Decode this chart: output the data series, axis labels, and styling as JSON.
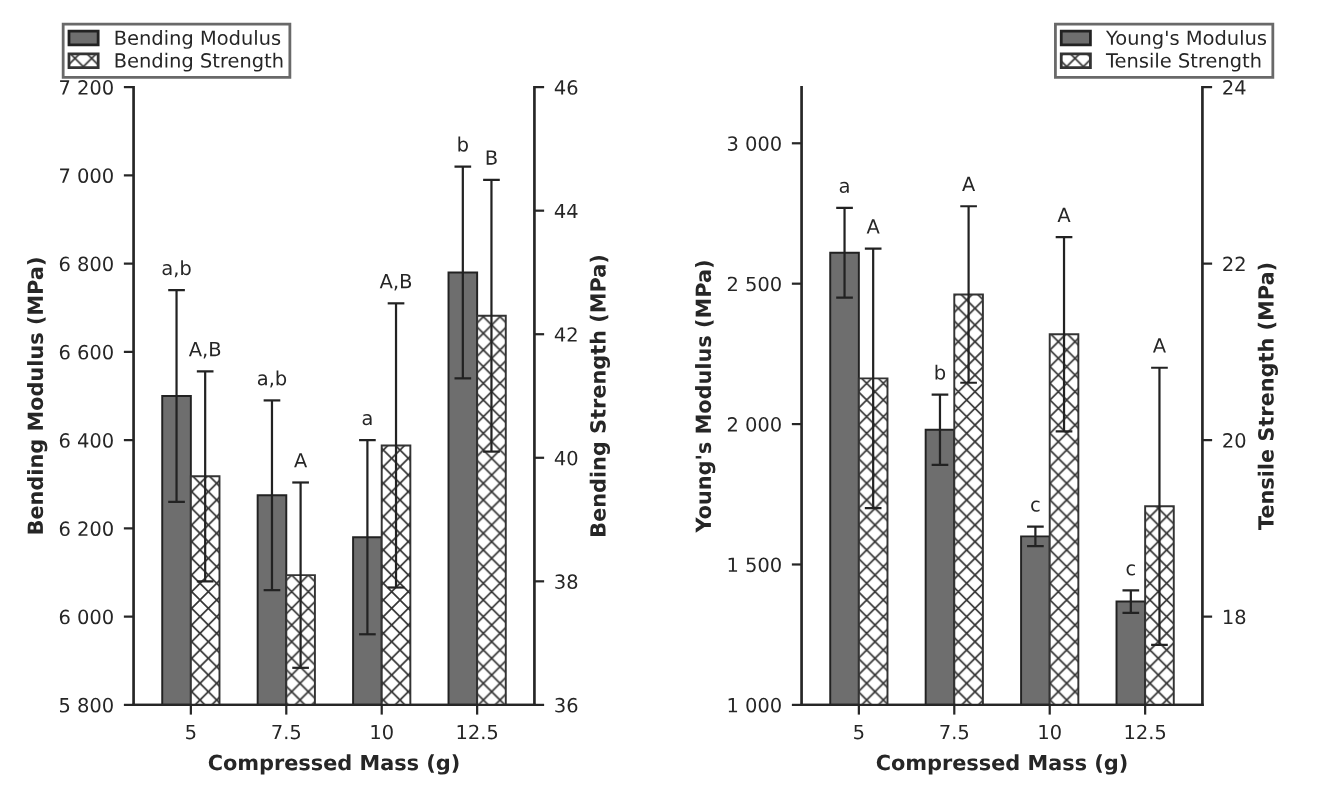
{
  "chart_data": [
    {
      "type": "bar",
      "xlabel": "Compressed Mass (g)",
      "ylabel": "Bending Modulus (MPa)",
      "y2label": "Bending Strength (MPa)",
      "categories": [
        "5",
        "7.5",
        "10",
        "12.5"
      ],
      "series": [
        {
          "name": "Bending Modulus",
          "color": "#6e6e6e",
          "values": [
            6500,
            6275,
            6180,
            6780
          ],
          "errors": [
            240,
            215,
            220,
            240
          ]
        },
        {
          "name": "Bending Strength",
          "color": "#333333",
          "axis": "y2",
          "values": [
            39.7,
            38.1,
            40.2,
            42.3
          ],
          "errors": [
            1.7,
            1.5,
            2.3,
            2.2
          ]
        }
      ],
      "annotations": [
        {
          "text": "a,b",
          "x": "5",
          "y": 6740
        },
        {
          "text": "A,B",
          "x": "5",
          "y": 6556
        },
        {
          "text": "a,b",
          "x": "7.5",
          "y": 6490
        },
        {
          "text": "A",
          "x": "7.5",
          "y": 6304
        },
        {
          "text": "a",
          "x": "10",
          "y": 6400
        },
        {
          "text": "A,B",
          "x": "10",
          "y": 6710
        },
        {
          "text": "b",
          "x": "12.5",
          "y": 7020
        },
        {
          "text": "B",
          "x": "12.5",
          "y": 6990
        }
      ],
      "ylim": [
        5800,
        7200
      ],
      "yticks": [
        {
          "value": 5800,
          "label": "5 800"
        },
        {
          "value": 6000,
          "label": "6 000"
        },
        {
          "value": 6200,
          "label": "6 200"
        },
        {
          "value": 6400,
          "label": "6 400"
        },
        {
          "value": 6600,
          "label": "6 600"
        },
        {
          "value": 6800,
          "label": "6 800"
        },
        {
          "value": 7000,
          "label": "7 000"
        },
        {
          "value": 7200,
          "label": "7 200"
        }
      ],
      "y2lim": [
        36,
        46
      ],
      "y2ticks": [
        36,
        38,
        40,
        42,
        44,
        46
      ],
      "legend": "top left",
      "grid": false
    },
    {
      "type": "bar",
      "xlabel": "Compressed Mass (g)",
      "ylabel": "Young's Modulus (MPa)",
      "y2label": "Tensile Strength (MPa)",
      "categories": [
        "5",
        "7.5",
        "10",
        "12.5"
      ],
      "series": [
        {
          "name": "Young's Modulus",
          "color": "#6e6e6e",
          "values": [
            2610,
            1980,
            1600,
            1368
          ],
          "errors": [
            160,
            125,
            35,
            40
          ]
        },
        {
          "name": "Tensile Strength",
          "color": "#333333",
          "axis": "y2",
          "values": [
            20.7,
            21.65,
            21.2,
            19.25
          ],
          "errors": [
            1.47,
            1.0,
            1.1,
            1.57
          ]
        }
      ],
      "annotations": [
        {
          "text": "a",
          "x": "5",
          "y": 2770
        },
        {
          "text": "A",
          "x": "5",
          "y": 2625
        },
        {
          "text": "b",
          "x": "7.5",
          "y": 2105
        },
        {
          "text": "A",
          "x": "7.5",
          "y": 2776
        },
        {
          "text": "c",
          "x": "10",
          "y": 1635
        },
        {
          "text": "A",
          "x": "10",
          "y": 2666
        },
        {
          "text": "c",
          "x": "12.5",
          "y": 1408
        },
        {
          "text": "A",
          "x": "12.5",
          "y": 2201
        }
      ],
      "ylim": [
        1000,
        3200
      ],
      "yticks": [
        {
          "value": 1000,
          "label": "1 000"
        },
        {
          "value": 1500,
          "label": "1 500"
        },
        {
          "value": 2000,
          "label": "2 000"
        },
        {
          "value": 2500,
          "label": "2 500"
        },
        {
          "value": 3000,
          "label": "3 000"
        }
      ],
      "y2lim": [
        17,
        24
      ],
      "y2ticks": [
        18,
        20,
        22,
        24
      ],
      "legend": "top right",
      "grid": false
    }
  ]
}
